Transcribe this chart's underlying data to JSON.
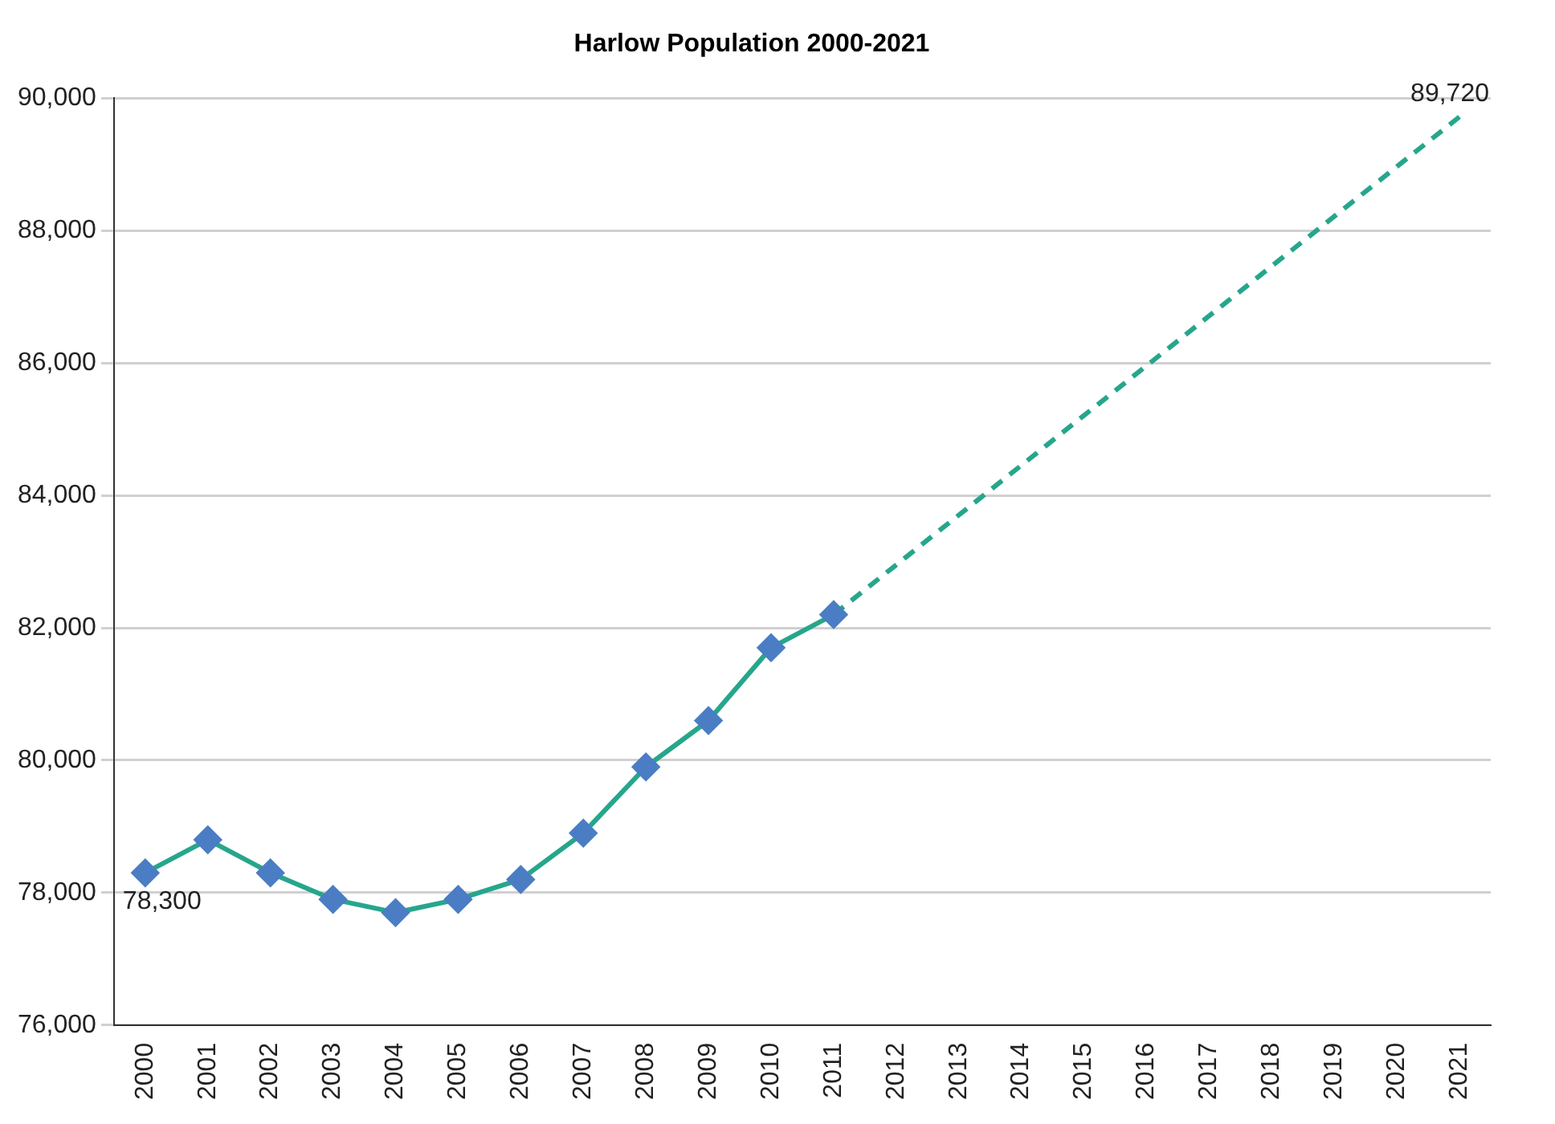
{
  "chart_data": {
    "type": "line",
    "title": "Harlow Population 2000-2021",
    "categories": [
      "2000",
      "2001",
      "2002",
      "2003",
      "2004",
      "2005",
      "2006",
      "2007",
      "2008",
      "2009",
      "2010",
      "2011",
      "2012",
      "2013",
      "2014",
      "2015",
      "2016",
      "2017",
      "2018",
      "2019",
      "2020",
      "2021"
    ],
    "series": [
      {
        "color": "#26a68c",
        "marker": "diamond",
        "line_style": "solid",
        "values": [
          78300,
          78800,
          78300,
          77900,
          77700,
          77900,
          78200,
          78900,
          79900,
          80600,
          81700,
          82200,
          null,
          null,
          null,
          null,
          null,
          null,
          null,
          null,
          null,
          null
        ],
        "value_labels": [
          "78,300",
          null,
          null,
          null,
          null,
          null,
          null,
          null,
          null,
          null,
          null,
          null,
          null,
          null,
          null,
          null,
          null,
          null,
          null,
          null,
          null,
          null
        ]
      },
      {
        "color": "#26a68c",
        "marker": "none",
        "line_style": "dashed",
        "values": [
          null,
          null,
          null,
          null,
          null,
          null,
          null,
          null,
          null,
          null,
          null,
          82200,
          null,
          null,
          null,
          null,
          null,
          null,
          null,
          null,
          null,
          89720
        ],
        "value_labels": [
          null,
          null,
          null,
          null,
          null,
          null,
          null,
          null,
          null,
          null,
          null,
          null,
          null,
          null,
          null,
          null,
          null,
          null,
          null,
          null,
          null,
          "89,720"
        ]
      }
    ],
    "ylim": [
      76000,
      90000
    ],
    "yticks": [
      {
        "value": 76000,
        "label": "76,000"
      },
      {
        "value": 78000,
        "label": "78,000"
      },
      {
        "value": 80000,
        "label": "80,000"
      },
      {
        "value": 82000,
        "label": "82,000"
      },
      {
        "value": 84000,
        "label": "84,000"
      },
      {
        "value": 86000,
        "label": "86,000"
      },
      {
        "value": 88000,
        "label": "88,000"
      },
      {
        "value": 90000,
        "label": "90,000"
      }
    ],
    "grid": "y",
    "legend": false
  }
}
